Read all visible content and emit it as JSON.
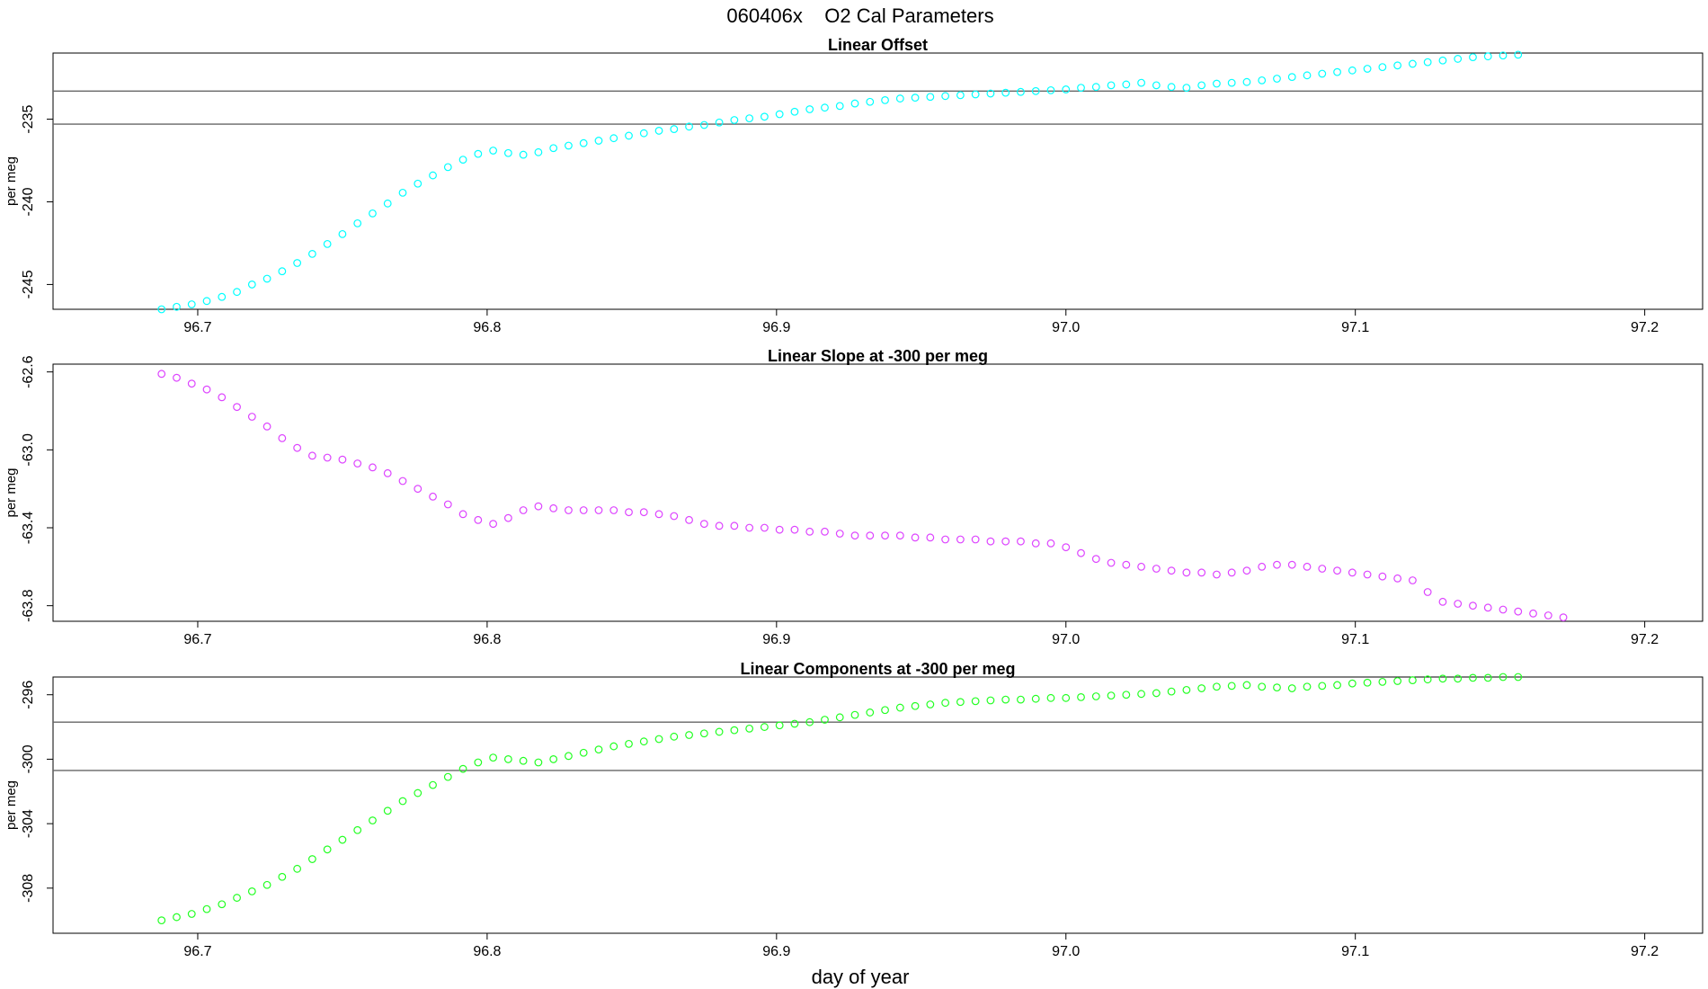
{
  "page": {
    "title": "060406x    O2 Cal Parameters",
    "xlabel": "day of year"
  },
  "chart_data": [
    {
      "type": "scatter",
      "title": "Linear Offset",
      "ylabel": "per meg",
      "color": "#00ffff",
      "xlim": [
        96.65,
        97.22
      ],
      "ylim": [
        -246.5,
        -231.0
      ],
      "xticks": [
        96.7,
        96.8,
        96.9,
        97.0,
        97.1,
        97.2
      ],
      "xtick_labels": [
        "96.7",
        "96.8",
        "96.9",
        "97.0",
        "97.1",
        "97.2"
      ],
      "yticks": [
        -235,
        -240,
        -245
      ],
      "ytick_labels": [
        "-235",
        "-240",
        "-245"
      ],
      "hlines": [
        -233.3,
        -235.3
      ],
      "x_start": 96.6875,
      "x_step": 0.0052083,
      "values": [
        -246.5,
        -246.35,
        -246.2,
        -246.0,
        -245.75,
        -245.45,
        -245.0,
        -244.65,
        -244.2,
        -243.7,
        -243.15,
        -242.55,
        -241.95,
        -241.3,
        -240.7,
        -240.1,
        -239.45,
        -238.9,
        -238.4,
        -237.9,
        -237.45,
        -237.1,
        -236.9,
        -237.05,
        -237.15,
        -237.0,
        -236.75,
        -236.6,
        -236.45,
        -236.3,
        -236.15,
        -236.0,
        -235.85,
        -235.7,
        -235.6,
        -235.45,
        -235.35,
        -235.2,
        -235.05,
        -234.95,
        -234.85,
        -234.7,
        -234.55,
        -234.4,
        -234.3,
        -234.2,
        -234.05,
        -233.95,
        -233.85,
        -233.75,
        -233.7,
        -233.65,
        -233.6,
        -233.55,
        -233.5,
        -233.45,
        -233.4,
        -233.35,
        -233.3,
        -233.25,
        -233.2,
        -233.1,
        -233.05,
        -232.95,
        -232.9,
        -232.8,
        -232.95,
        -233.05,
        -233.1,
        -232.95,
        -232.85,
        -232.8,
        -232.75,
        -232.65,
        -232.55,
        -232.45,
        -232.35,
        -232.25,
        -232.15,
        -232.05,
        -231.95,
        -231.85,
        -231.75,
        -231.65,
        -231.55,
        -231.45,
        -231.35,
        -231.25,
        -231.2,
        -231.15,
        -231.1
      ]
    },
    {
      "type": "scatter",
      "title": "Linear Slope at -300 per meg",
      "ylabel": "per meg",
      "color": "#dd44ff",
      "xlim": [
        96.65,
        97.22
      ],
      "ylim": [
        -63.88,
        -62.56
      ],
      "xticks": [
        96.7,
        96.8,
        96.9,
        97.0,
        97.1,
        97.2
      ],
      "xtick_labels": [
        "96.7",
        "96.8",
        "96.9",
        "97.0",
        "97.1",
        "97.2"
      ],
      "yticks": [
        -62.6,
        -63.0,
        -63.4,
        -63.8
      ],
      "ytick_labels": [
        "-62.6",
        "-63.0",
        "-63.4",
        "-63.8"
      ],
      "hlines": [],
      "x_start": 96.6875,
      "x_step": 0.0052083,
      "values": [
        -62.61,
        -62.63,
        -62.66,
        -62.69,
        -62.73,
        -62.78,
        -62.83,
        -62.88,
        -62.94,
        -62.99,
        -63.03,
        -63.04,
        -63.05,
        -63.07,
        -63.09,
        -63.12,
        -63.16,
        -63.2,
        -63.24,
        -63.28,
        -63.33,
        -63.36,
        -63.38,
        -63.35,
        -63.31,
        -63.29,
        -63.3,
        -63.31,
        -63.31,
        -63.31,
        -63.31,
        -63.32,
        -63.32,
        -63.33,
        -63.34,
        -63.36,
        -63.38,
        -63.39,
        -63.39,
        -63.4,
        -63.4,
        -63.41,
        -63.41,
        -63.42,
        -63.42,
        -63.43,
        -63.44,
        -63.44,
        -63.44,
        -63.44,
        -63.45,
        -63.45,
        -63.46,
        -63.46,
        -63.46,
        -63.47,
        -63.47,
        -63.47,
        -63.48,
        -63.48,
        -63.5,
        -63.53,
        -63.56,
        -63.58,
        -63.59,
        -63.6,
        -63.61,
        -63.62,
        -63.63,
        -63.63,
        -63.64,
        -63.63,
        -63.62,
        -63.6,
        -63.59,
        -63.59,
        -63.6,
        -63.61,
        -63.62,
        -63.63,
        -63.64,
        -63.65,
        -63.66,
        -63.67,
        -63.73,
        -63.78,
        -63.79,
        -63.8,
        -63.81,
        -63.82,
        -63.83,
        -63.84,
        -63.85,
        -63.86
      ]
    },
    {
      "type": "scatter",
      "title": "Linear Components at -300 per meg",
      "ylabel": "per meg",
      "color": "#22ff22",
      "xlim": [
        96.65,
        97.22
      ],
      "ylim": [
        -310.8,
        -294.9
      ],
      "xticks": [
        96.7,
        96.8,
        96.9,
        97.0,
        97.1,
        97.2
      ],
      "xtick_labels": [
        "96.7",
        "96.8",
        "96.9",
        "97.0",
        "97.1",
        "97.2"
      ],
      "yticks": [
        -296,
        -300,
        -304,
        -308
      ],
      "ytick_labels": [
        "-296",
        "-300",
        "-304",
        "-308"
      ],
      "hlines": [
        -297.7,
        -300.7
      ],
      "x_start": 96.6875,
      "x_step": 0.0052083,
      "values": [
        -310.0,
        -309.8,
        -309.6,
        -309.3,
        -309.0,
        -308.6,
        -308.2,
        -307.8,
        -307.3,
        -306.8,
        -306.2,
        -305.6,
        -305.0,
        -304.4,
        -303.8,
        -303.2,
        -302.6,
        -302.1,
        -301.6,
        -301.1,
        -300.6,
        -300.2,
        -299.9,
        -300.0,
        -300.1,
        -300.2,
        -300.0,
        -299.8,
        -299.6,
        -299.4,
        -299.2,
        -299.05,
        -298.9,
        -298.75,
        -298.6,
        -298.5,
        -298.4,
        -298.3,
        -298.2,
        -298.1,
        -298.0,
        -297.9,
        -297.8,
        -297.7,
        -297.55,
        -297.4,
        -297.25,
        -297.1,
        -296.95,
        -296.8,
        -296.7,
        -296.6,
        -296.5,
        -296.45,
        -296.4,
        -296.35,
        -296.3,
        -296.3,
        -296.25,
        -296.2,
        -296.2,
        -296.15,
        -296.1,
        -296.05,
        -296.0,
        -295.95,
        -295.9,
        -295.8,
        -295.7,
        -295.6,
        -295.5,
        -295.45,
        -295.4,
        -295.5,
        -295.55,
        -295.6,
        -295.5,
        -295.45,
        -295.4,
        -295.3,
        -295.25,
        -295.2,
        -295.15,
        -295.1,
        -295.05,
        -295.0,
        -295.0,
        -294.95,
        -294.95,
        -294.9,
        -294.9
      ]
    }
  ]
}
